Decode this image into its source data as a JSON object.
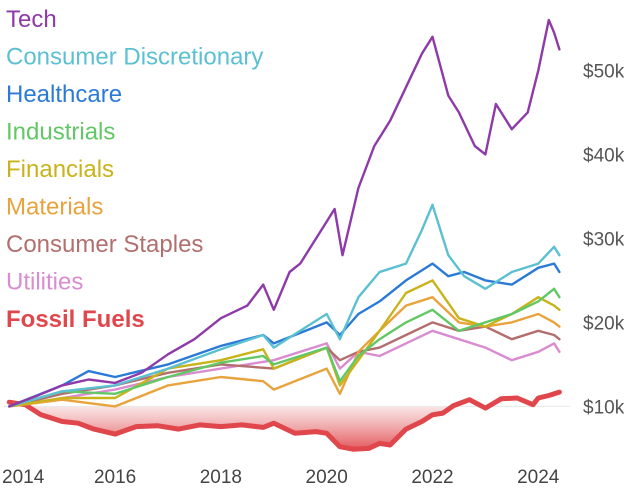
{
  "chart_data": {
    "type": "line",
    "title": "",
    "xlabel": "",
    "ylabel": "",
    "xlim": [
      2013.9,
      2024.6
    ],
    "ylim": [
      6000,
      56000
    ],
    "x_ticks": [
      2014,
      2016,
      2018,
      2020,
      2022,
      2024
    ],
    "y_ticks": [
      10000,
      20000,
      30000,
      40000,
      50000
    ],
    "y_tick_labels": [
      "$10k",
      "$20k",
      "$30k",
      "$40k",
      "$50k"
    ],
    "baseline": 10000,
    "legend_position": "top-left",
    "grid": false,
    "series": [
      {
        "name": "Tech",
        "color": "#8e3aa8",
        "bold": false,
        "x": [
          2014.0,
          2014.5,
          2015.0,
          2015.5,
          2016.0,
          2016.5,
          2017.0,
          2017.5,
          2018.0,
          2018.5,
          2018.8,
          2019.0,
          2019.3,
          2019.5,
          2019.9,
          2020.15,
          2020.3,
          2020.6,
          2020.9,
          2021.2,
          2021.5,
          2021.8,
          2022.0,
          2022.3,
          2022.5,
          2022.8,
          2023.0,
          2023.2,
          2023.5,
          2023.8,
          2024.0,
          2024.2,
          2024.3,
          2024.4
        ],
        "values": [
          10000,
          11200,
          12500,
          13200,
          12800,
          14000,
          16200,
          18000,
          20500,
          22000,
          24500,
          21500,
          26000,
          27000,
          31000,
          33500,
          28000,
          36000,
          41000,
          44000,
          48000,
          52000,
          54000,
          47000,
          45000,
          41000,
          40000,
          46000,
          43000,
          45000,
          50000,
          56000,
          54500,
          52500
        ]
      },
      {
        "name": "Consumer Discretionary",
        "color": "#5bc0d1",
        "bold": false,
        "x": [
          2014.0,
          2015.0,
          2016.0,
          2017.0,
          2018.0,
          2018.8,
          2019.0,
          2019.5,
          2020.0,
          2020.25,
          2020.6,
          2021.0,
          2021.5,
          2021.8,
          2022.0,
          2022.3,
          2022.6,
          2023.0,
          2023.5,
          2024.0,
          2024.3,
          2024.4
        ],
        "values": [
          10000,
          11800,
          12500,
          14500,
          16800,
          18500,
          17000,
          19000,
          21000,
          18000,
          23000,
          26000,
          27000,
          31000,
          34000,
          28000,
          25500,
          24000,
          26000,
          27000,
          29000,
          28000
        ]
      },
      {
        "name": "Healthcare",
        "color": "#2a7ad6",
        "bold": false,
        "x": [
          2014.0,
          2015.0,
          2015.5,
          2016.0,
          2017.0,
          2018.0,
          2018.8,
          2019.0,
          2020.0,
          2020.25,
          2020.6,
          2021.0,
          2021.5,
          2022.0,
          2022.3,
          2022.6,
          2023.0,
          2023.5,
          2024.0,
          2024.3,
          2024.4
        ],
        "values": [
          10000,
          12500,
          14200,
          13500,
          15000,
          17200,
          18500,
          17500,
          20000,
          18500,
          21000,
          22500,
          25000,
          27000,
          25500,
          26000,
          25000,
          24500,
          26500,
          27000,
          26000
        ]
      },
      {
        "name": "Industrials",
        "color": "#62c765",
        "bold": false,
        "x": [
          2014.0,
          2015.0,
          2016.0,
          2017.0,
          2018.0,
          2018.8,
          2019.0,
          2020.0,
          2020.25,
          2020.6,
          2021.0,
          2021.5,
          2022.0,
          2022.5,
          2023.0,
          2023.5,
          2024.0,
          2024.3,
          2024.4
        ],
        "values": [
          10000,
          11800,
          11500,
          13500,
          15200,
          16000,
          15000,
          17000,
          13000,
          16000,
          18000,
          20000,
          21500,
          19000,
          20000,
          21000,
          22500,
          24000,
          23000
        ]
      },
      {
        "name": "Financials",
        "color": "#c9b31a",
        "bold": false,
        "x": [
          2014.0,
          2015.0,
          2016.0,
          2017.0,
          2018.0,
          2018.8,
          2019.0,
          2020.0,
          2020.25,
          2020.6,
          2021.0,
          2021.5,
          2022.0,
          2022.5,
          2023.0,
          2023.5,
          2024.0,
          2024.3,
          2024.4
        ],
        "values": [
          10000,
          11000,
          11000,
          14500,
          15500,
          16800,
          14500,
          17000,
          12500,
          15500,
          19000,
          23500,
          25000,
          20500,
          19500,
          21000,
          23000,
          22000,
          21500
        ]
      },
      {
        "name": "Materials",
        "color": "#e8a33d",
        "bold": false,
        "x": [
          2014.0,
          2015.0,
          2016.0,
          2017.0,
          2018.0,
          2018.8,
          2019.0,
          2020.0,
          2020.25,
          2020.6,
          2021.0,
          2021.5,
          2022.0,
          2022.5,
          2023.0,
          2023.5,
          2024.0,
          2024.3,
          2024.4
        ],
        "values": [
          10000,
          10800,
          10000,
          12500,
          13500,
          13000,
          12000,
          14500,
          11500,
          16500,
          19000,
          22000,
          23000,
          20000,
          19500,
          20000,
          21000,
          20000,
          19500
        ]
      },
      {
        "name": "Consumer Staples",
        "color": "#b36e6e",
        "bold": false,
        "x": [
          2014.0,
          2015.0,
          2016.0,
          2017.0,
          2018.0,
          2019.0,
          2020.0,
          2020.25,
          2020.6,
          2021.0,
          2021.5,
          2022.0,
          2022.5,
          2023.0,
          2023.5,
          2024.0,
          2024.3,
          2024.4
        ],
        "values": [
          10000,
          11500,
          12500,
          14000,
          15000,
          14500,
          17000,
          15500,
          16500,
          17000,
          18500,
          20000,
          19000,
          19500,
          18000,
          19000,
          18500,
          18000
        ]
      },
      {
        "name": "Utilities",
        "color": "#d98ccf",
        "bold": false,
        "x": [
          2014.0,
          2015.0,
          2016.0,
          2017.0,
          2018.0,
          2019.0,
          2020.0,
          2020.25,
          2020.6,
          2021.0,
          2021.5,
          2022.0,
          2022.5,
          2023.0,
          2023.5,
          2024.0,
          2024.3,
          2024.4
        ],
        "values": [
          10000,
          11000,
          12000,
          13500,
          14500,
          15500,
          17500,
          14500,
          16500,
          16000,
          17500,
          19000,
          18000,
          17000,
          15500,
          16500,
          17500,
          16500
        ]
      },
      {
        "name": "Fossil Fuels",
        "color": "#e0474c",
        "bold": true,
        "x": [
          2014.0,
          2014.3,
          2014.6,
          2015.0,
          2015.3,
          2015.6,
          2016.0,
          2016.4,
          2016.8,
          2017.2,
          2017.6,
          2018.0,
          2018.4,
          2018.8,
          2019.0,
          2019.4,
          2019.8,
          2020.0,
          2020.25,
          2020.5,
          2020.8,
          2021.0,
          2021.2,
          2021.5,
          2021.8,
          2022.0,
          2022.2,
          2022.4,
          2022.7,
          2023.0,
          2023.3,
          2023.6,
          2023.9,
          2024.0,
          2024.2,
          2024.4
        ],
        "values": [
          10500,
          10200,
          9000,
          8200,
          8000,
          7300,
          6700,
          7600,
          7700,
          7300,
          7800,
          7600,
          7800,
          7500,
          8000,
          6800,
          7000,
          6800,
          5200,
          4900,
          5000,
          5600,
          5400,
          7300,
          8200,
          9000,
          9200,
          10100,
          10800,
          9800,
          10900,
          11000,
          10200,
          11000,
          11300,
          11700
        ]
      }
    ]
  }
}
